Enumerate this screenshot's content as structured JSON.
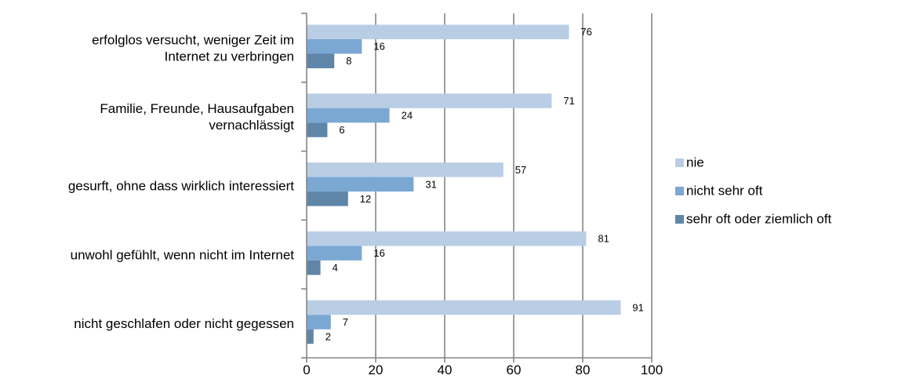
{
  "chart_data": {
    "type": "bar",
    "orientation": "horizontal",
    "categories": [
      [
        "erfolglos versucht, weniger Zeit im",
        "Internet zu verbringen"
      ],
      [
        "Familie, Freunde, Hausaufgaben",
        "vernachlässigt"
      ],
      [
        "gesurft, ohne dass wirklich interessiert"
      ],
      [
        "unwohl gefühlt, wenn nicht im Internet"
      ],
      [
        "nicht geschlafen oder nicht gegessen"
      ]
    ],
    "series": [
      {
        "name": "nie",
        "color": "#b9cde5",
        "values": [
          76,
          71,
          57,
          81,
          91
        ]
      },
      {
        "name": "nicht sehr oft",
        "color": "#7ba7d3",
        "values": [
          16,
          24,
          31,
          16,
          7
        ]
      },
      {
        "name": "sehr oft oder ziemlich oft",
        "color": "#5f86a8",
        "values": [
          8,
          6,
          12,
          4,
          2
        ]
      }
    ],
    "xlim": [
      0,
      100
    ],
    "xticks": [
      0,
      20,
      40,
      60,
      80,
      100
    ],
    "grid": "vertical",
    "legend_position": "right",
    "data_labels": true
  }
}
